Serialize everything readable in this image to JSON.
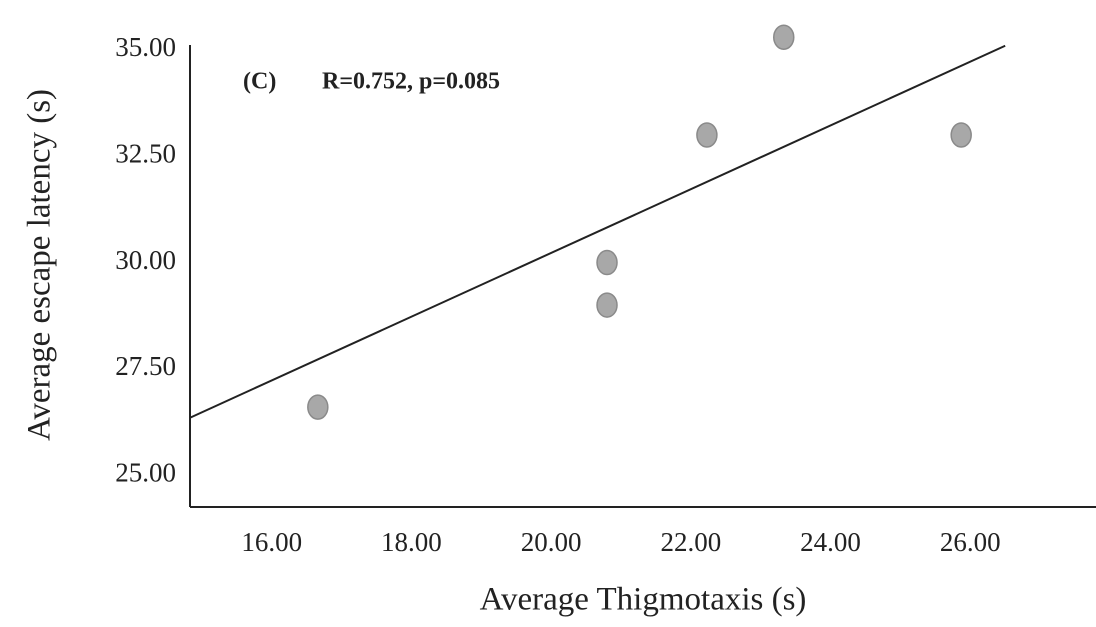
{
  "chart_data": {
    "type": "scatter",
    "xlabel": "Average Thigmotaxis (s)",
    "ylabel": "Average escape latency (s)",
    "annotations": [
      "(C)",
      "R=0.752, p=0.085"
    ],
    "x": [
      16.66,
      20.8,
      20.8,
      22.23,
      23.33,
      25.87
    ],
    "values": [
      26.6,
      30.0,
      29.0,
      33.0,
      35.3,
      33.0
    ],
    "color": "#a8a8a8",
    "trendline": {
      "x": [
        14.83,
        26.5
      ],
      "values": [
        26.35,
        35.1
      ],
      "color": "#222222"
    },
    "xlim": [
      14.83,
      27.8
    ],
    "ylim": [
      24.25,
      35.4
    ],
    "xticks": [
      {
        "value": 16,
        "label": "16.00"
      },
      {
        "value": 18,
        "label": "18.00"
      },
      {
        "value": 20,
        "label": "20.00"
      },
      {
        "value": 22,
        "label": "22.00"
      },
      {
        "value": 24,
        "label": "24.00"
      },
      {
        "value": 26,
        "label": "26.00"
      }
    ],
    "yticks": [
      {
        "value": 25,
        "label": "25.00"
      },
      {
        "value": 27.5,
        "label": "27.50"
      },
      {
        "value": 30,
        "label": "30.00"
      },
      {
        "value": 32.5,
        "label": "32.50"
      },
      {
        "value": 35,
        "label": "35.00"
      }
    ],
    "grid": false
  }
}
